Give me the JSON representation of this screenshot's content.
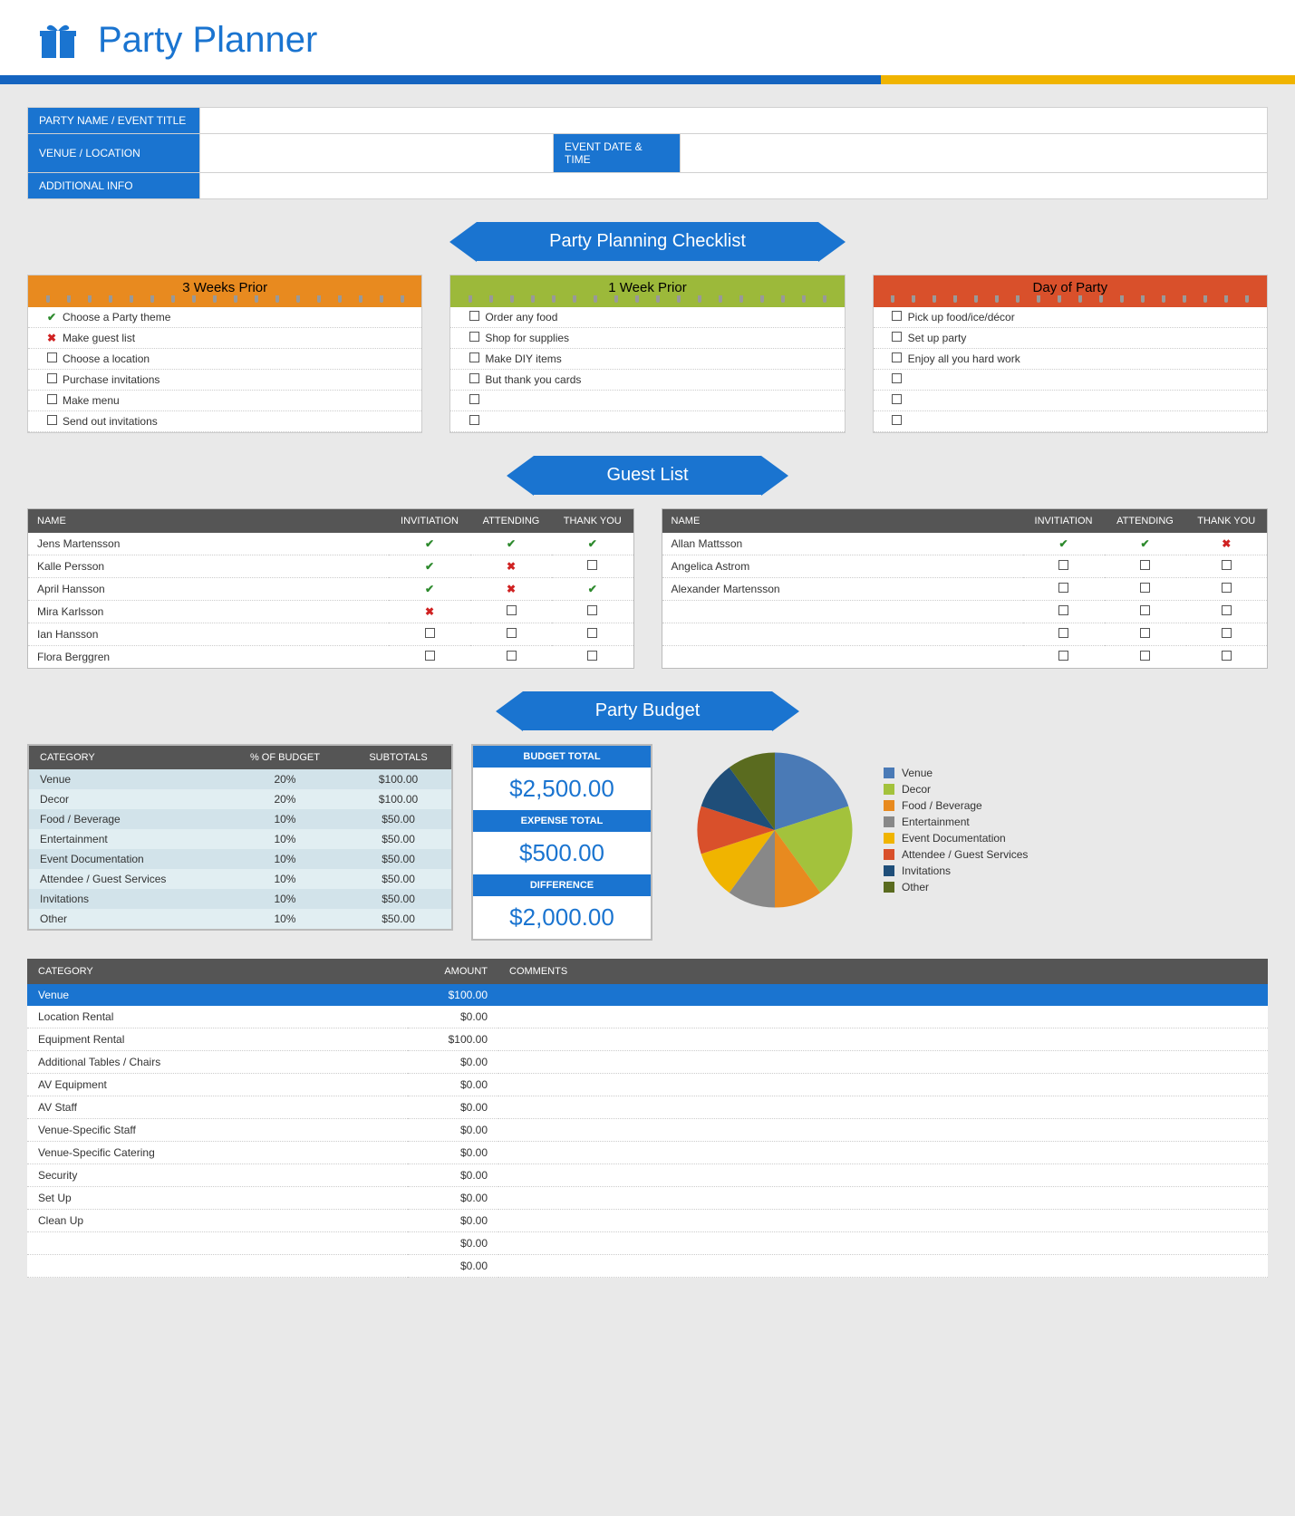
{
  "header": {
    "title": "Party Planner"
  },
  "info": {
    "labels": {
      "party_name": "PARTY NAME / EVENT TITLE",
      "venue": "VENUE / LOCATION",
      "event_date": "EVENT DATE & TIME",
      "additional": "ADDITIONAL INFO"
    },
    "values": {
      "party_name": "",
      "venue": "",
      "event_date": "",
      "additional": ""
    }
  },
  "checklist_section": {
    "title": "Party Planning Checklist",
    "lists": [
      {
        "title": "3 Weeks Prior",
        "color": "orange",
        "items": [
          {
            "status": "check",
            "text": "Choose a Party theme"
          },
          {
            "status": "cross",
            "text": "Make guest list"
          },
          {
            "status": "box",
            "text": "Choose a location"
          },
          {
            "status": "box",
            "text": "Purchase invitations"
          },
          {
            "status": "box",
            "text": "Make menu"
          },
          {
            "status": "box",
            "text": "Send out invitations"
          }
        ]
      },
      {
        "title": "1 Week Prior",
        "color": "green",
        "items": [
          {
            "status": "box",
            "text": "Order any food"
          },
          {
            "status": "box",
            "text": "Shop for supplies"
          },
          {
            "status": "box",
            "text": "Make DIY items"
          },
          {
            "status": "box",
            "text": "But thank you cards"
          },
          {
            "status": "box",
            "text": ""
          },
          {
            "status": "box",
            "text": ""
          }
        ]
      },
      {
        "title": "Day of Party",
        "color": "red",
        "items": [
          {
            "status": "box",
            "text": "Pick up food/ice/décor"
          },
          {
            "status": "box",
            "text": "Set up party"
          },
          {
            "status": "box",
            "text": "Enjoy all you hard work"
          },
          {
            "status": "box",
            "text": ""
          },
          {
            "status": "box",
            "text": ""
          },
          {
            "status": "box",
            "text": ""
          }
        ]
      }
    ]
  },
  "guest_section": {
    "title": "Guest List",
    "columns": {
      "name": "NAME",
      "inv": "INVITIATION",
      "att": "ATTENDING",
      "ty": "THANK YOU"
    },
    "tables": [
      [
        {
          "name": "Jens Martensson",
          "inv": "check",
          "att": "check",
          "ty": "check"
        },
        {
          "name": "Kalle Persson",
          "inv": "check",
          "att": "cross",
          "ty": "box"
        },
        {
          "name": "April Hansson",
          "inv": "check",
          "att": "cross",
          "ty": "check"
        },
        {
          "name": "Mira Karlsson",
          "inv": "cross",
          "att": "box",
          "ty": "box"
        },
        {
          "name": "Ian Hansson",
          "inv": "box",
          "att": "box",
          "ty": "box"
        },
        {
          "name": "Flora Berggren",
          "inv": "box",
          "att": "box",
          "ty": "box"
        }
      ],
      [
        {
          "name": "Allan Mattsson",
          "inv": "check",
          "att": "check",
          "ty": "cross"
        },
        {
          "name": "Angelica Astrom",
          "inv": "box",
          "att": "box",
          "ty": "box"
        },
        {
          "name": "Alexander Martensson",
          "inv": "box",
          "att": "box",
          "ty": "box"
        },
        {
          "name": "",
          "inv": "box",
          "att": "box",
          "ty": "box"
        },
        {
          "name": "",
          "inv": "box",
          "att": "box",
          "ty": "box"
        },
        {
          "name": "",
          "inv": "box",
          "att": "box",
          "ty": "box"
        }
      ]
    ]
  },
  "budget_section": {
    "title": "Party Budget",
    "summary": {
      "columns": {
        "cat": "CATEGORY",
        "pct": "% OF BUDGET",
        "sub": "SUBTOTALS"
      },
      "rows": [
        {
          "cat": "Venue",
          "pct": "20%",
          "sub": "$100.00"
        },
        {
          "cat": "Decor",
          "pct": "20%",
          "sub": "$100.00"
        },
        {
          "cat": "Food / Beverage",
          "pct": "10%",
          "sub": "$50.00"
        },
        {
          "cat": "Entertainment",
          "pct": "10%",
          "sub": "$50.00"
        },
        {
          "cat": "Event Documentation",
          "pct": "10%",
          "sub": "$50.00"
        },
        {
          "cat": "Attendee / Guest Services",
          "pct": "10%",
          "sub": "$50.00"
        },
        {
          "cat": "Invitations",
          "pct": "10%",
          "sub": "$50.00"
        },
        {
          "cat": "Other",
          "pct": "10%",
          "sub": "$50.00"
        }
      ]
    },
    "totals": {
      "budget_label": "BUDGET TOTAL",
      "budget_val": "$2,500.00",
      "expense_label": "EXPENSE TOTAL",
      "expense_val": "$500.00",
      "diff_label": "DIFFERENCE",
      "diff_val": "$2,000.00"
    },
    "pie": {
      "slices": [
        {
          "label": "Venue",
          "pct": 20,
          "color": "#4a7ab6"
        },
        {
          "label": "Decor",
          "pct": 20,
          "color": "#a3c23c"
        },
        {
          "label": "Food / Beverage",
          "pct": 10,
          "color": "#e88a1f"
        },
        {
          "label": "Entertainment",
          "pct": 10,
          "color": "#888888"
        },
        {
          "label": "Event Documentation",
          "pct": 10,
          "color": "#f0b400"
        },
        {
          "label": "Attendee / Guest Services",
          "pct": 10,
          "color": "#d9502b"
        },
        {
          "label": "Invitations",
          "pct": 10,
          "color": "#1f4e79"
        },
        {
          "label": "Other",
          "pct": 10,
          "color": "#5a6b1f"
        }
      ]
    },
    "detail": {
      "columns": {
        "cat": "CATEGORY",
        "amt": "AMOUNT",
        "com": "COMMENTS"
      },
      "cat_row": {
        "name": "Venue",
        "amt": "$100.00"
      },
      "rows": [
        {
          "name": "Location Rental",
          "amt": "$0.00"
        },
        {
          "name": "Equipment Rental",
          "amt": "$100.00"
        },
        {
          "name": "Additional Tables / Chairs",
          "amt": "$0.00"
        },
        {
          "name": "AV Equipment",
          "amt": "$0.00"
        },
        {
          "name": "AV Staff",
          "amt": "$0.00"
        },
        {
          "name": "Venue-Specific Staff",
          "amt": "$0.00"
        },
        {
          "name": "Venue-Specific Catering",
          "amt": "$0.00"
        },
        {
          "name": "Security",
          "amt": "$0.00"
        },
        {
          "name": "Set Up",
          "amt": "$0.00"
        },
        {
          "name": "Clean Up",
          "amt": "$0.00"
        },
        {
          "name": "",
          "amt": "$0.00"
        },
        {
          "name": "",
          "amt": "$0.00"
        }
      ]
    }
  }
}
